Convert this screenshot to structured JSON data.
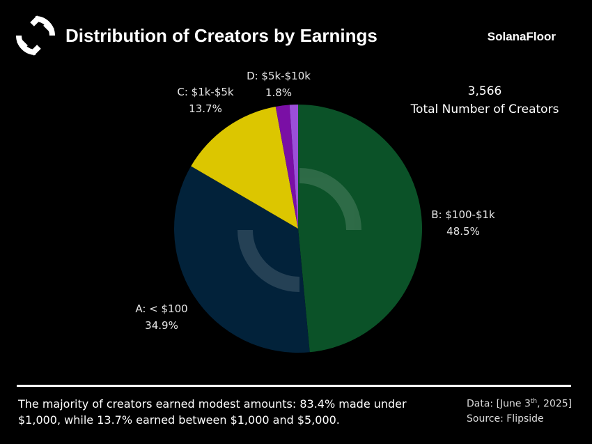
{
  "header": {
    "title": "Distribution of Creators by Earnings",
    "brand": "SolanaFloor"
  },
  "total": {
    "value": "3,566",
    "label": "Total Number of Creators"
  },
  "chart_data": {
    "type": "pie",
    "title": "Distribution of Creators by Earnings",
    "slices": [
      {
        "label": "B: $100-$1k",
        "value": 48.5,
        "display": "48.5%",
        "color": "#0b5228"
      },
      {
        "label": "A: < $100",
        "value": 34.9,
        "display": "34.9%",
        "color": "#02223a"
      },
      {
        "label": "C: $1k-$5k",
        "value": 13.7,
        "display": "13.7%",
        "color": "#dcc600"
      },
      {
        "label": "D: $5k-$10k",
        "value": 1.8,
        "display": "1.8%",
        "color": "#7a0fa5"
      },
      {
        "label": "",
        "value": 1.1,
        "display": "",
        "color": "#9b4fd8"
      }
    ],
    "start_angle_deg": 0,
    "direction": "clockwise"
  },
  "footer": {
    "summary": "The majority of creators earned modest amounts: 83.4% made under $1,000, while 13.7% earned between $1,000 and $5,000.",
    "data_prefix": "Data: [June 3",
    "data_sup": "th",
    "data_suffix": ", 2025]",
    "source": "Source: Flipside"
  },
  "colors": {
    "background": "#000000",
    "text": "#ffffff"
  }
}
